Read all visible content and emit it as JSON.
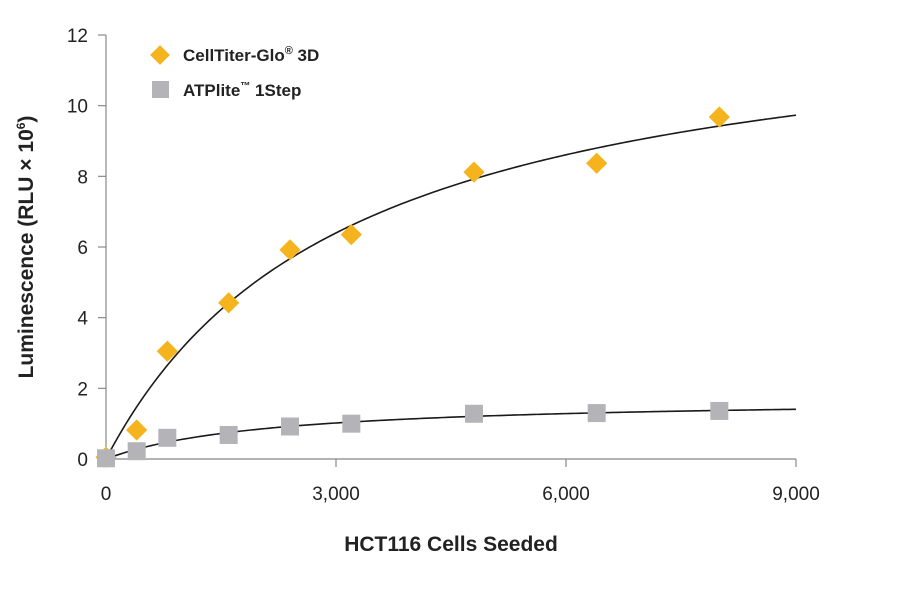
{
  "chart_data": {
    "type": "scatter",
    "title": "",
    "xlabel": "HCT116 Cells Seeded",
    "ylabel": "Luminescence (RLU × 10",
    "ylabel_sup": "6",
    "ylabel_end": ")",
    "xlim": [
      0,
      9000
    ],
    "ylim": [
      0,
      12
    ],
    "xticks": [
      0,
      3000,
      6000,
      9000
    ],
    "xtick_labels": [
      "0",
      "3,000",
      "6,000",
      "9,000"
    ],
    "yticks": [
      0,
      2,
      4,
      6,
      8,
      10,
      12
    ],
    "ytick_labels": [
      "0",
      "2",
      "4",
      "6",
      "8",
      "10",
      "12"
    ],
    "grid": false,
    "legend_position": "top-left",
    "series": [
      {
        "name": "CellTiter-Glo",
        "name_mark": "®",
        "name_suffix": " 3D",
        "marker": "diamond",
        "color": "#F5B41E",
        "fit": "curve",
        "x": [
          0,
          400,
          800,
          1600,
          2400,
          3200,
          4800,
          6400,
          8000
        ],
        "y": [
          0.05,
          0.82,
          3.05,
          4.42,
          5.92,
          6.35,
          8.12,
          8.37,
          9.68
        ]
      },
      {
        "name": "ATPlite",
        "name_mark": "™",
        "name_suffix": " 1Step",
        "marker": "square",
        "color": "#B4B4B8",
        "fit": "curve",
        "x": [
          0,
          400,
          800,
          1600,
          2400,
          3200,
          4800,
          6400,
          8000
        ],
        "y": [
          0.02,
          0.22,
          0.6,
          0.68,
          0.92,
          1.0,
          1.28,
          1.3,
          1.36
        ]
      }
    ]
  }
}
